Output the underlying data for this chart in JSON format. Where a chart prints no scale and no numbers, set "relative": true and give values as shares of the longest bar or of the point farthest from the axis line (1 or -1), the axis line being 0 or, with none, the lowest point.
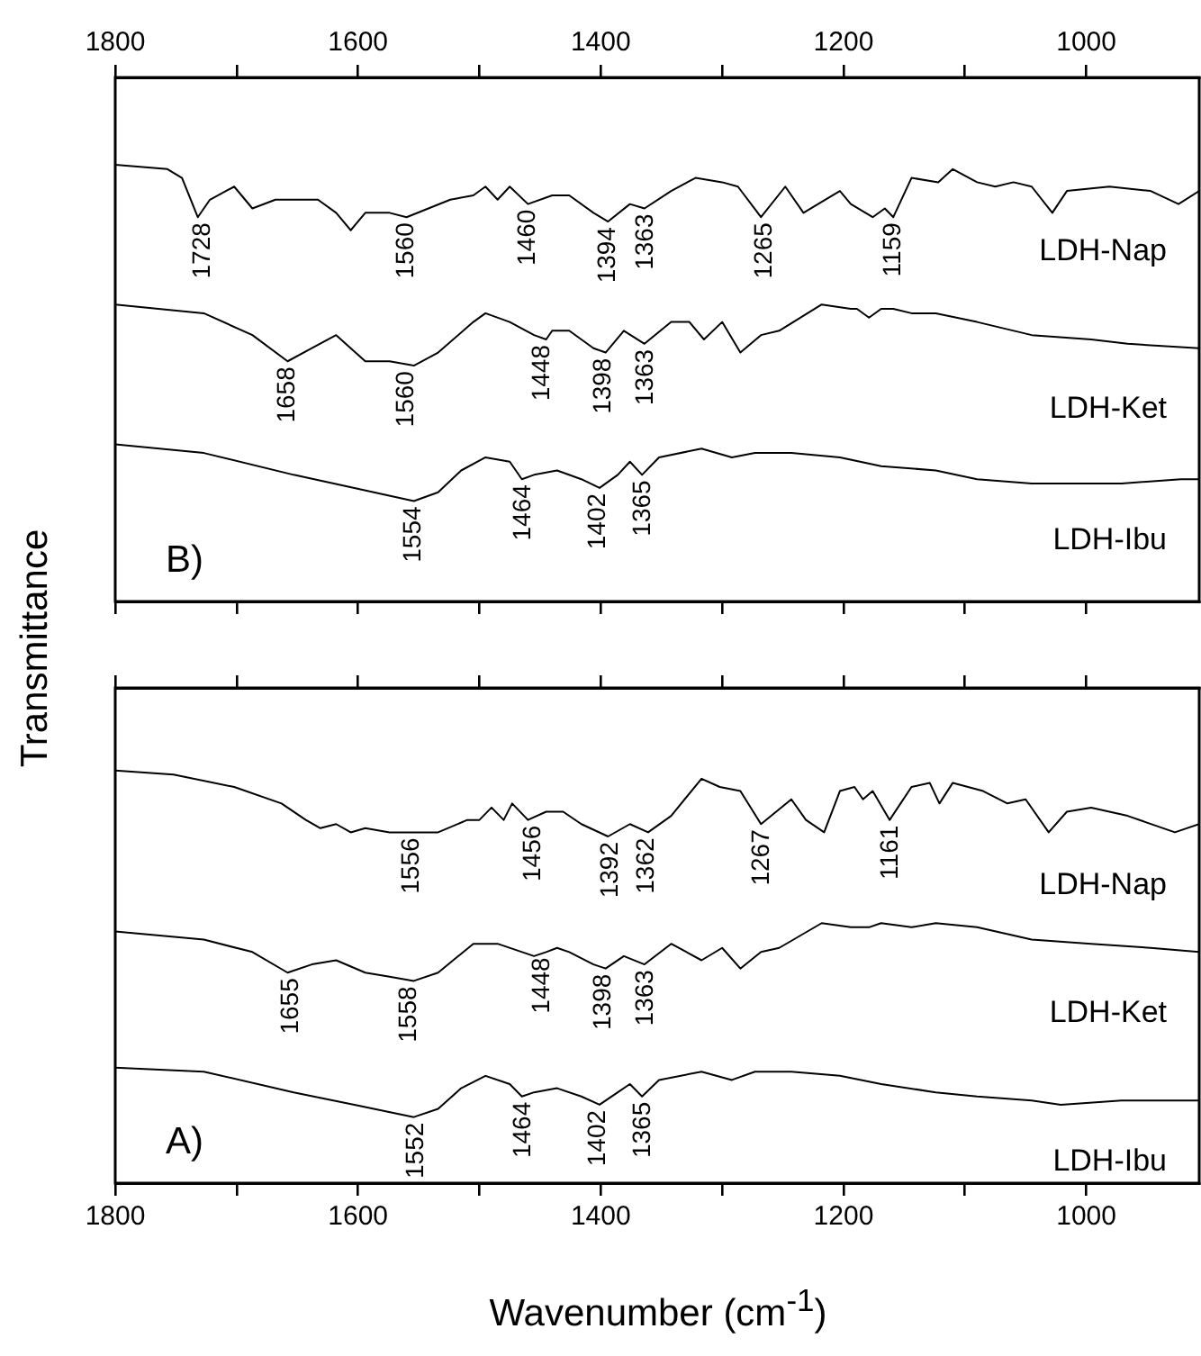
{
  "chart_data": [
    {
      "type": "line",
      "title": "B)",
      "ylabel": "Transmittance",
      "relative": true,
      "legend": false,
      "grid": false,
      "marker": "none",
      "line_style": "solid",
      "tick_labels": "x",
      "xlim": [
        1800,
        907
      ],
      "x2lim": [
        1800,
        907
      ],
      "x2ticks": [
        1800,
        {
          "value": 1700,
          "label": null
        },
        1600,
        {
          "value": 1500,
          "label": null
        },
        1400,
        {
          "value": 1300,
          "label": null
        },
        1200,
        {
          "value": 1100,
          "label": null
        },
        1000
      ],
      "series": [
        {
          "name": "LDH-Nap",
          "color": "#000000",
          "x": [
            1800,
            1757,
            1745,
            1732,
            1722,
            1702,
            1687,
            1668,
            1633,
            1618,
            1606,
            1594,
            1574,
            1560,
            1524,
            1505,
            1495,
            1485,
            1475,
            1460,
            1440,
            1426,
            1406,
            1394,
            1376,
            1364,
            1342,
            1322,
            1300,
            1287,
            1268,
            1248,
            1233,
            1221,
            1203,
            1194,
            1176,
            1166,
            1159,
            1144,
            1122,
            1110,
            1090,
            1075,
            1060,
            1045,
            1028,
            1016,
            981,
            947,
            924,
            907
          ],
          "values": [
            1.0,
            0.99,
            0.97,
            0.88,
            0.92,
            0.95,
            0.9,
            0.92,
            0.92,
            0.89,
            0.85,
            0.89,
            0.89,
            0.88,
            0.92,
            0.93,
            0.95,
            0.92,
            0.95,
            0.91,
            0.93,
            0.93,
            0.89,
            0.87,
            0.91,
            0.9,
            0.94,
            0.97,
            0.96,
            0.95,
            0.88,
            0.95,
            0.89,
            0.91,
            0.94,
            0.91,
            0.88,
            0.9,
            0.88,
            0.97,
            0.96,
            0.99,
            0.96,
            0.95,
            0.96,
            0.95,
            0.89,
            0.94,
            0.95,
            0.94,
            0.91,
            0.94
          ]
        },
        {
          "name": "LDH-Ket",
          "color": "#000000",
          "x": [
            1800,
            1727,
            1687,
            1658,
            1638,
            1618,
            1594,
            1574,
            1554,
            1534,
            1505,
            1495,
            1475,
            1455,
            1445,
            1440,
            1426,
            1406,
            1396,
            1381,
            1364,
            1342,
            1327,
            1315,
            1300,
            1285,
            1268,
            1253,
            1218,
            1194,
            1189,
            1179,
            1169,
            1159,
            1144,
            1124,
            1090,
            1045,
            996,
            966,
            907
          ],
          "values": [
            0.68,
            0.66,
            0.61,
            0.55,
            0.58,
            0.61,
            0.55,
            0.55,
            0.54,
            0.57,
            0.64,
            0.66,
            0.64,
            0.61,
            0.6,
            0.62,
            0.62,
            0.58,
            0.57,
            0.62,
            0.59,
            0.64,
            0.64,
            0.6,
            0.64,
            0.57,
            0.61,
            0.62,
            0.68,
            0.67,
            0.67,
            0.65,
            0.67,
            0.67,
            0.66,
            0.66,
            0.64,
            0.61,
            0.6,
            0.59,
            0.58
          ]
        },
        {
          "name": "LDH-Ibu",
          "color": "#000000",
          "x": [
            1800,
            1727,
            1653,
            1603,
            1554,
            1534,
            1515,
            1495,
            1475,
            1465,
            1455,
            1436,
            1416,
            1401,
            1386,
            1376,
            1366,
            1352,
            1317,
            1292,
            1273,
            1243,
            1203,
            1169,
            1124,
            1090,
            1045,
            1021,
            971,
            922,
            907
          ],
          "values": [
            0.36,
            0.34,
            0.29,
            0.26,
            0.23,
            0.25,
            0.3,
            0.33,
            0.32,
            0.28,
            0.29,
            0.3,
            0.28,
            0.26,
            0.29,
            0.32,
            0.29,
            0.33,
            0.35,
            0.33,
            0.34,
            0.34,
            0.33,
            0.31,
            0.3,
            0.28,
            0.27,
            0.27,
            0.27,
            0.28,
            0.28
          ]
        }
      ],
      "annotations": [
        {
          "text": "1728",
          "x": 1728,
          "y": 0.88
        },
        {
          "text": "1560",
          "x": 1560,
          "y": 0.88
        },
        {
          "text": "1460",
          "x": 1460,
          "y": 0.91
        },
        {
          "text": "1394",
          "x": 1394,
          "y": 0.87
        },
        {
          "text": "1363",
          "x": 1363,
          "y": 0.9
        },
        {
          "text": "1265",
          "x": 1265,
          "y": 0.88
        },
        {
          "text": "1159",
          "x": 1159,
          "y": 0.88
        },
        {
          "text": "1658",
          "x": 1658,
          "y": 0.55
        },
        {
          "text": "1560",
          "x": 1560,
          "y": 0.54
        },
        {
          "text": "1448",
          "x": 1448,
          "y": 0.6
        },
        {
          "text": "1398",
          "x": 1398,
          "y": 0.57
        },
        {
          "text": "1363",
          "x": 1363,
          "y": 0.59
        },
        {
          "text": "1554",
          "x": 1554,
          "y": 0.23
        },
        {
          "text": "1464",
          "x": 1464,
          "y": 0.28
        },
        {
          "text": "1402",
          "x": 1402,
          "y": 0.26
        },
        {
          "text": "1365",
          "x": 1365,
          "y": 0.29
        }
      ]
    },
    {
      "type": "line",
      "title": "A)",
      "xlabel": "Wavenumber (cm$^{-1}$)",
      "relative": true,
      "legend": false,
      "grid": false,
      "marker": "none",
      "line_style": "solid",
      "tick_labels": "x",
      "xlim": [
        1800,
        907
      ],
      "xticks": [
        1800,
        {
          "value": 1700,
          "label": null
        },
        1600,
        {
          "value": 1500,
          "label": null
        },
        1400,
        {
          "value": 1300,
          "label": null
        },
        1200,
        {
          "value": 1100,
          "label": null
        },
        1000
      ],
      "series": [
        {
          "name": "LDH-Nap",
          "color": "#000000",
          "x": [
            1800,
            1752,
            1702,
            1663,
            1643,
            1631,
            1618,
            1606,
            1594,
            1574,
            1554,
            1534,
            1510,
            1500,
            1490,
            1480,
            1473,
            1460,
            1445,
            1431,
            1416,
            1394,
            1376,
            1361,
            1342,
            1317,
            1302,
            1285,
            1268,
            1243,
            1231,
            1216,
            1203,
            1191,
            1184,
            1176,
            1162,
            1144,
            1129,
            1121,
            1110,
            1085,
            1065,
            1050,
            1031,
            1016,
            996,
            966,
            927,
            907
          ],
          "values": [
            1.0,
            0.99,
            0.96,
            0.92,
            0.88,
            0.86,
            0.87,
            0.85,
            0.86,
            0.85,
            0.85,
            0.85,
            0.88,
            0.88,
            0.91,
            0.88,
            0.92,
            0.88,
            0.9,
            0.9,
            0.87,
            0.84,
            0.87,
            0.85,
            0.89,
            0.98,
            0.96,
            0.95,
            0.87,
            0.93,
            0.88,
            0.85,
            0.95,
            0.96,
            0.93,
            0.95,
            0.88,
            0.96,
            0.97,
            0.92,
            0.97,
            0.95,
            0.92,
            0.93,
            0.85,
            0.9,
            0.91,
            0.89,
            0.85,
            0.87
          ]
        },
        {
          "name": "LDH-Ket",
          "color": "#000000",
          "x": [
            1800,
            1727,
            1687,
            1658,
            1638,
            1618,
            1594,
            1574,
            1554,
            1534,
            1505,
            1485,
            1455,
            1445,
            1436,
            1426,
            1406,
            1396,
            1381,
            1364,
            1342,
            1317,
            1300,
            1285,
            1268,
            1253,
            1218,
            1194,
            1179,
            1169,
            1144,
            1124,
            1090,
            1045,
            996,
            947,
            907
          ],
          "values": [
            0.61,
            0.59,
            0.56,
            0.51,
            0.53,
            0.54,
            0.51,
            0.5,
            0.49,
            0.51,
            0.58,
            0.58,
            0.55,
            0.56,
            0.57,
            0.56,
            0.53,
            0.52,
            0.55,
            0.53,
            0.58,
            0.54,
            0.57,
            0.52,
            0.56,
            0.57,
            0.63,
            0.62,
            0.62,
            0.63,
            0.62,
            0.63,
            0.62,
            0.59,
            0.58,
            0.57,
            0.56
          ]
        },
        {
          "name": "LDH-Ibu",
          "color": "#000000",
          "x": [
            1800,
            1727,
            1653,
            1603,
            1554,
            1534,
            1515,
            1495,
            1475,
            1465,
            1455,
            1436,
            1416,
            1401,
            1386,
            1376,
            1366,
            1352,
            1317,
            1292,
            1273,
            1243,
            1203,
            1169,
            1124,
            1090,
            1045,
            1021,
            971,
            922,
            907
          ],
          "values": [
            0.28,
            0.27,
            0.22,
            0.19,
            0.16,
            0.18,
            0.23,
            0.26,
            0.24,
            0.21,
            0.22,
            0.23,
            0.21,
            0.19,
            0.22,
            0.24,
            0.21,
            0.25,
            0.27,
            0.25,
            0.27,
            0.27,
            0.26,
            0.24,
            0.22,
            0.21,
            0.2,
            0.19,
            0.2,
            0.2,
            0.2
          ]
        }
      ],
      "annotations": [
        {
          "text": "1556",
          "x": 1556,
          "y": 0.85
        },
        {
          "text": "1456",
          "x": 1456,
          "y": 0.88
        },
        {
          "text": "1392",
          "x": 1392,
          "y": 0.84
        },
        {
          "text": "1362",
          "x": 1362,
          "y": 0.85
        },
        {
          "text": "1267",
          "x": 1267,
          "y": 0.87
        },
        {
          "text": "1161",
          "x": 1161,
          "y": 0.88
        },
        {
          "text": "1655",
          "x": 1655,
          "y": 0.51
        },
        {
          "text": "1558",
          "x": 1558,
          "y": 0.49
        },
        {
          "text": "1448",
          "x": 1448,
          "y": 0.56
        },
        {
          "text": "1398",
          "x": 1398,
          "y": 0.52
        },
        {
          "text": "1363",
          "x": 1363,
          "y": 0.53
        },
        {
          "text": "1552",
          "x": 1552,
          "y": 0.16
        },
        {
          "text": "1464",
          "x": 1464,
          "y": 0.21
        },
        {
          "text": "1402",
          "x": 1402,
          "y": 0.19
        },
        {
          "text": "1365",
          "x": 1365,
          "y": 0.21
        }
      ]
    }
  ]
}
